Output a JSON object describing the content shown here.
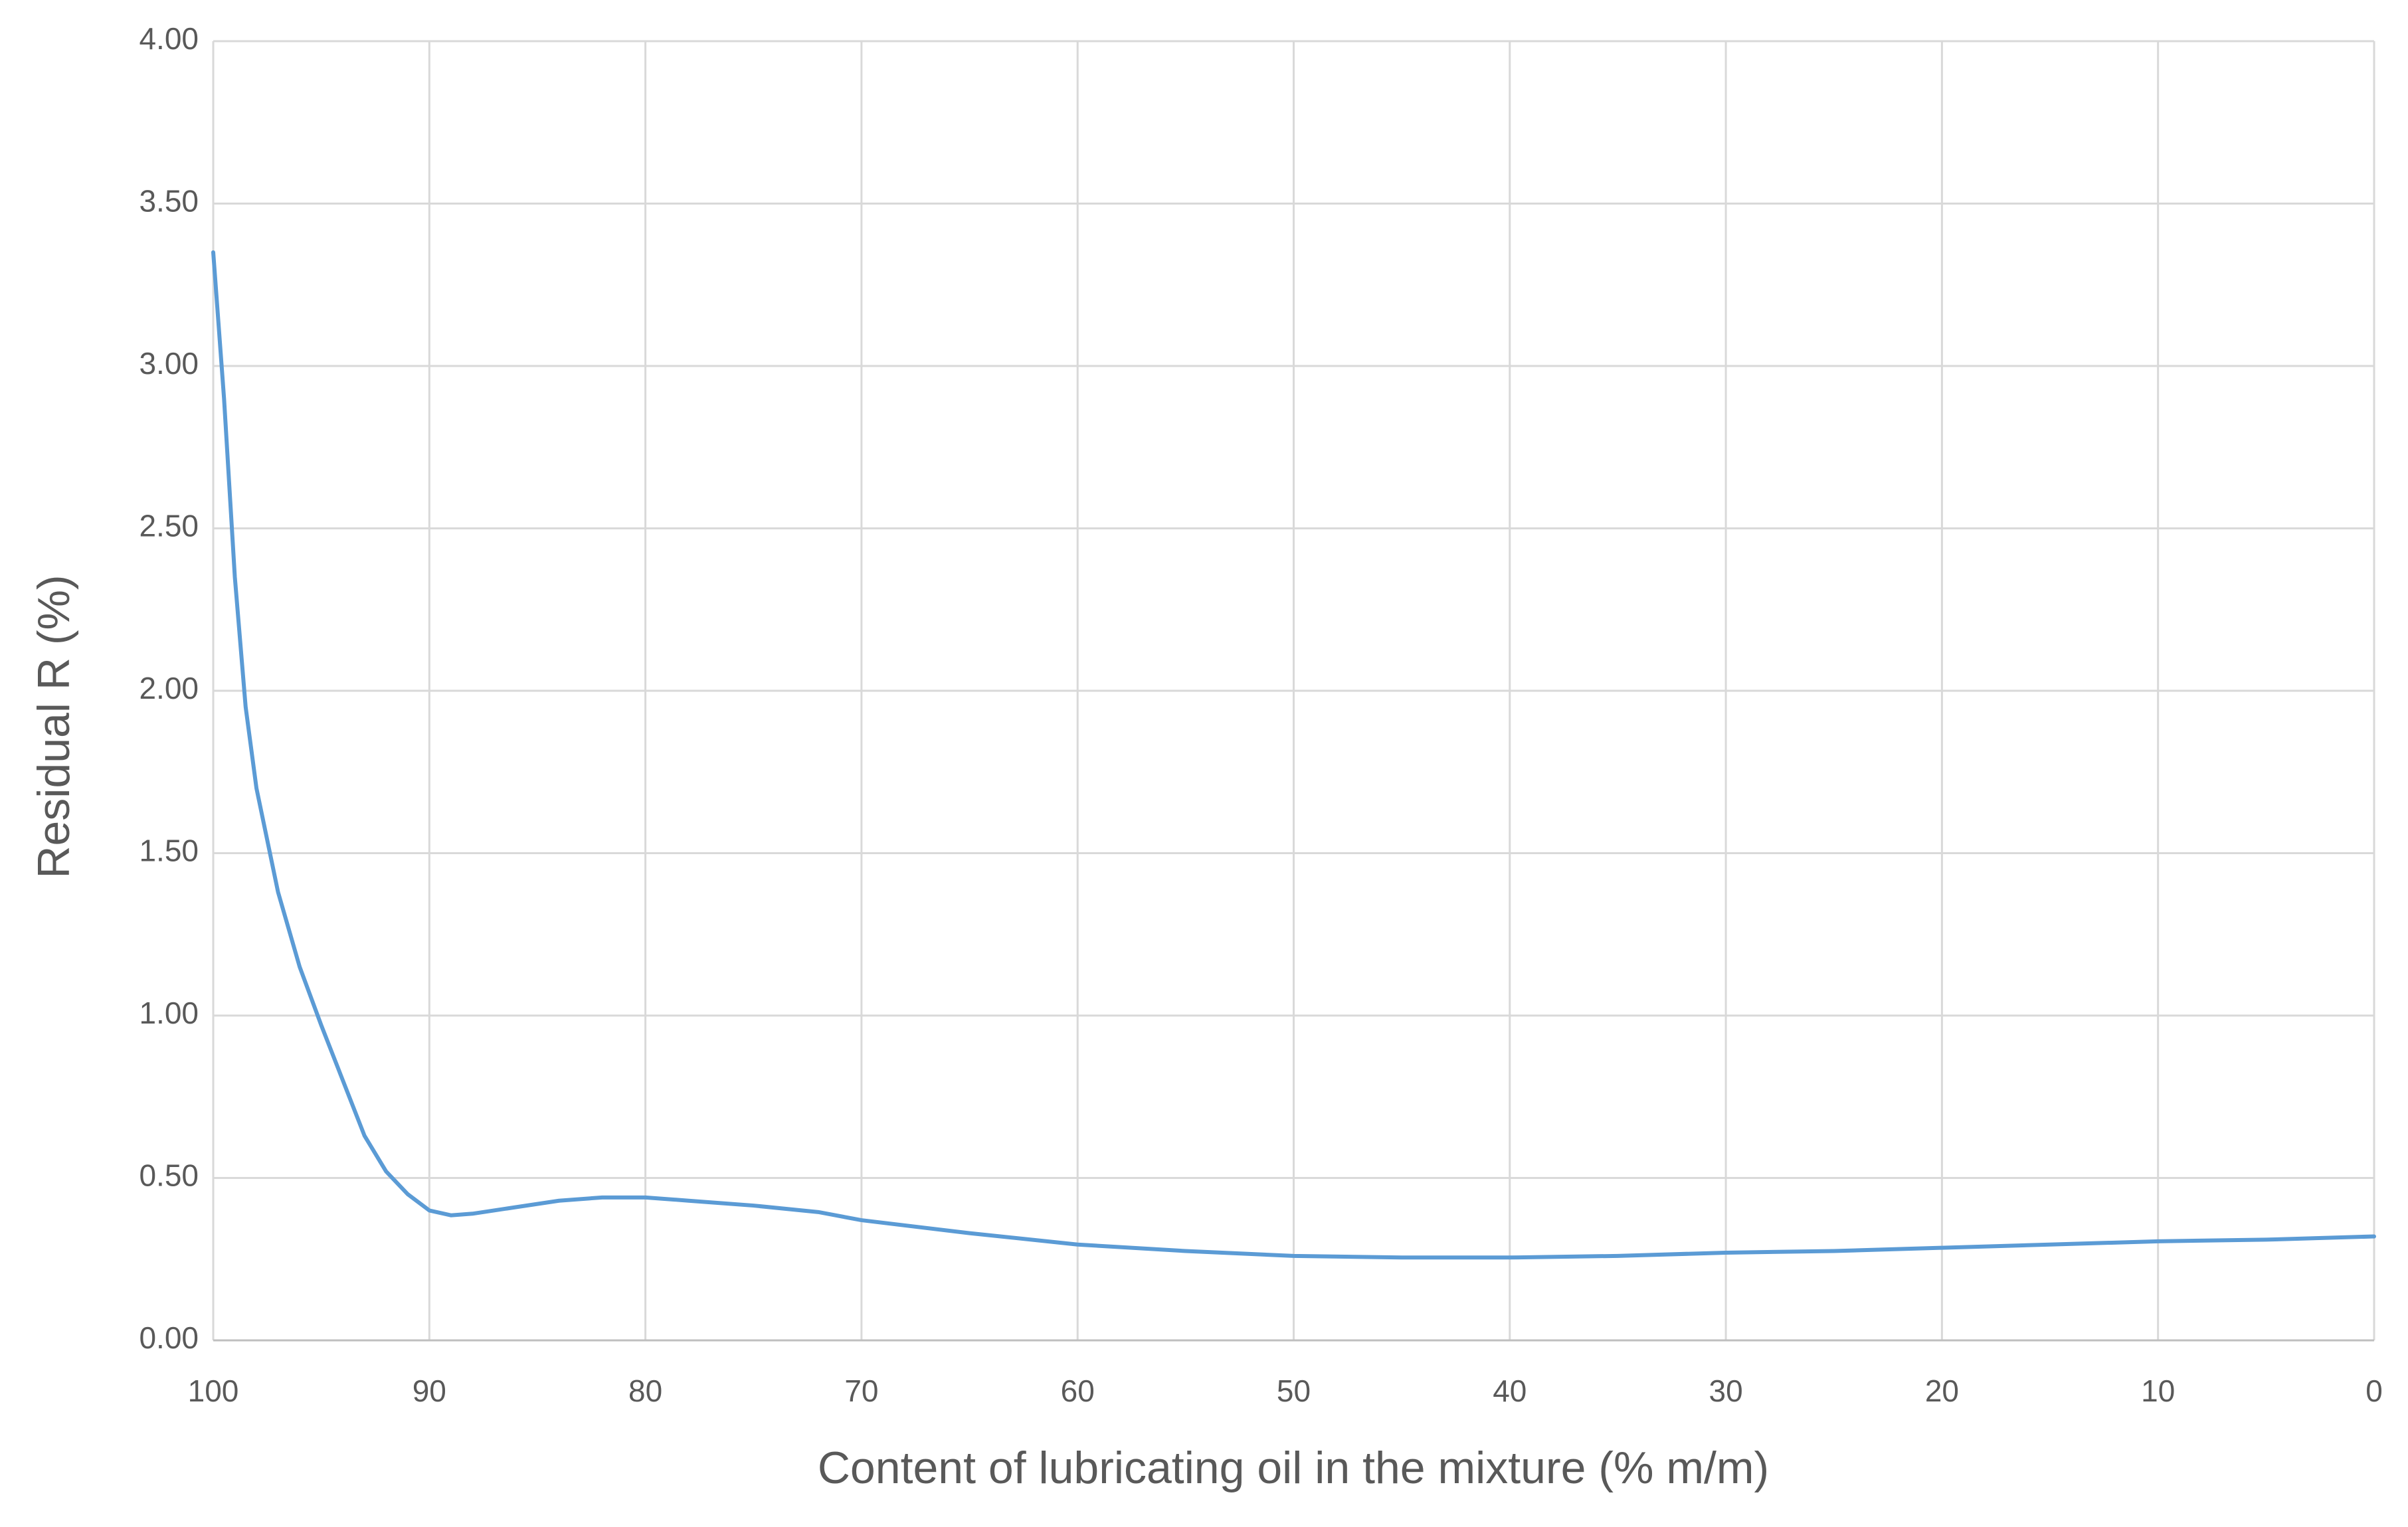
{
  "chart_data": {
    "type": "line",
    "x_label": "Content of lubricating oil in the mixture (% m/m)",
    "y_label": "Residual R (%)",
    "x": [
      100,
      99.5,
      99,
      98.5,
      98,
      97,
      96,
      95,
      94,
      93,
      92,
      91,
      90,
      89,
      88,
      86,
      84,
      82,
      80,
      78,
      75,
      72,
      70,
      65,
      60,
      55,
      50,
      45,
      40,
      35,
      30,
      25,
      20,
      15,
      10,
      5,
      0
    ],
    "series": [
      {
        "color": "#5b9bd5",
        "values": [
          3.35,
          2.9,
          2.35,
          1.95,
          1.7,
          1.38,
          1.15,
          0.97,
          0.8,
          0.63,
          0.52,
          0.45,
          0.4,
          0.385,
          0.39,
          0.41,
          0.43,
          0.44,
          0.44,
          0.43,
          0.415,
          0.395,
          0.37,
          0.33,
          0.295,
          0.275,
          0.26,
          0.255,
          0.255,
          0.26,
          0.27,
          0.275,
          0.285,
          0.295,
          0.305,
          0.31,
          0.32
        ]
      }
    ],
    "xlim": [
      100,
      0
    ],
    "xticks": [
      100,
      90,
      80,
      70,
      60,
      50,
      40,
      30,
      20,
      10,
      0
    ],
    "ylim": [
      0,
      4
    ],
    "yticks": [
      {
        "value": 0,
        "label": "0.00"
      },
      {
        "value": 0.5,
        "label": "0.50"
      },
      {
        "value": 1,
        "label": "1.00"
      },
      {
        "value": 1.5,
        "label": "1.50"
      },
      {
        "value": 2,
        "label": "2.00"
      },
      {
        "value": 2.5,
        "label": "2.50"
      },
      {
        "value": 3,
        "label": "3.00"
      },
      {
        "value": 3.5,
        "label": "3.50"
      },
      {
        "value": 4,
        "label": "4.00"
      }
    ],
    "grid": true
  }
}
